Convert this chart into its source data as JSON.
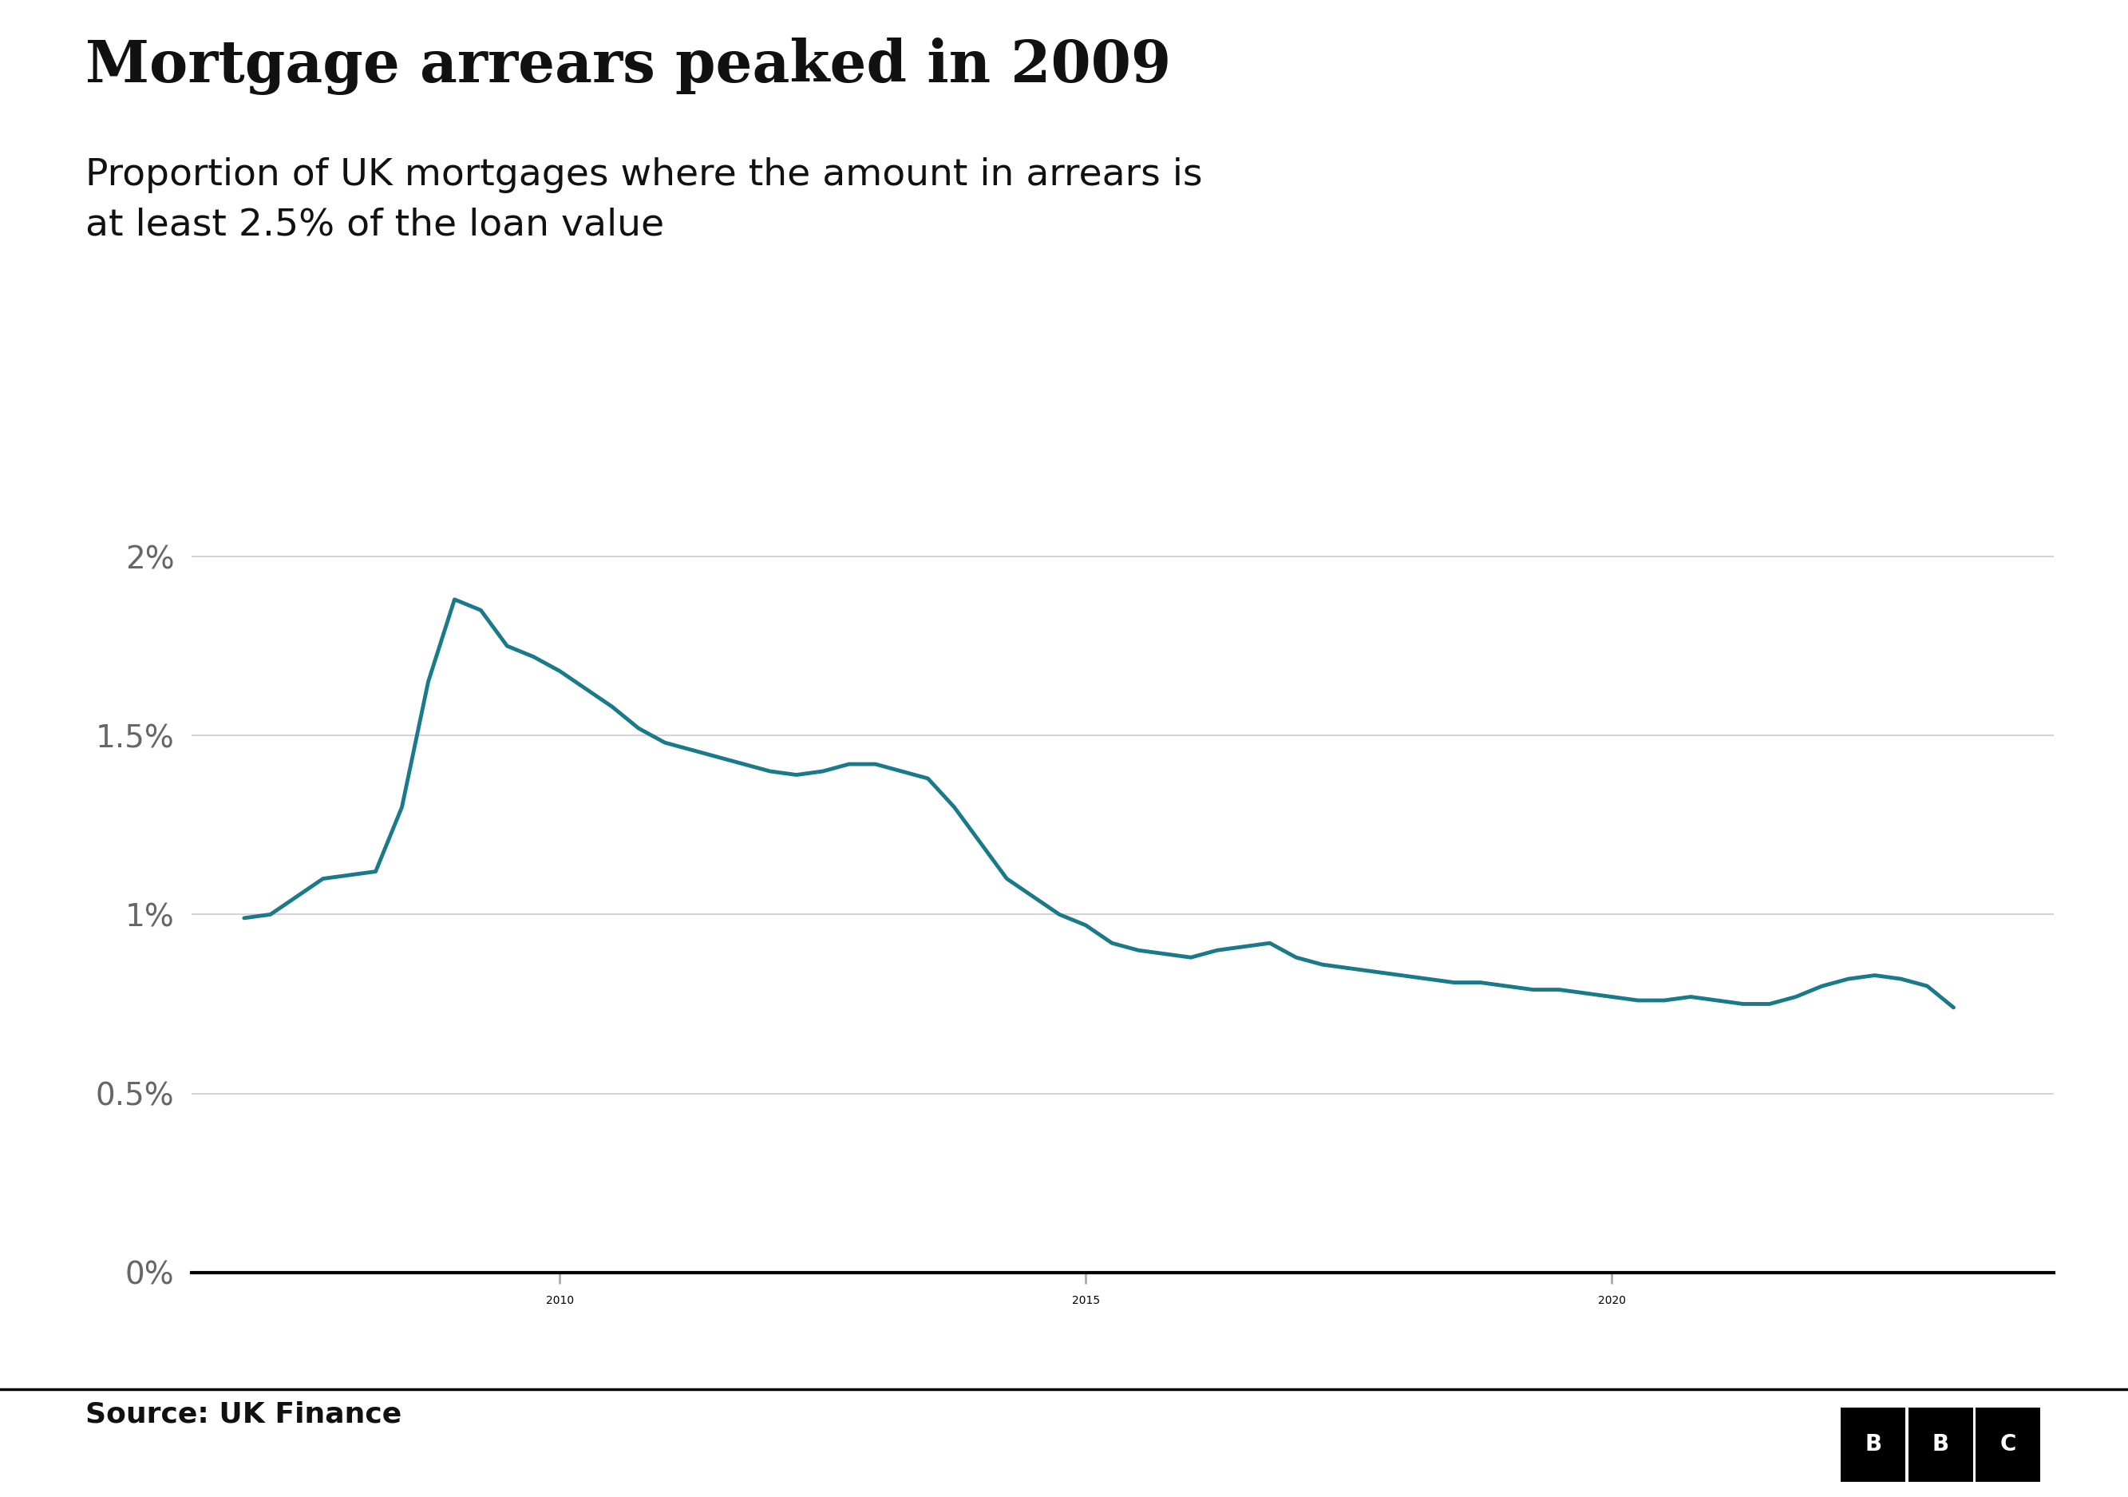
{
  "title": "Mortgage arrears peaked in 2009",
  "subtitle": "Proportion of UK mortgages where the amount in arrears is\nat least 2.5% of the loan value",
  "source": "Source: UK Finance",
  "line_color": "#1a7a8a",
  "background_color": "#ffffff",
  "title_fontsize": 52,
  "subtitle_fontsize": 34,
  "years": [
    2007.0,
    2007.25,
    2007.5,
    2007.75,
    2008.0,
    2008.25,
    2008.5,
    2008.75,
    2009.0,
    2009.25,
    2009.5,
    2009.75,
    2010.0,
    2010.25,
    2010.5,
    2010.75,
    2011.0,
    2011.25,
    2011.5,
    2011.75,
    2012.0,
    2012.25,
    2012.5,
    2012.75,
    2013.0,
    2013.25,
    2013.5,
    2013.75,
    2014.0,
    2014.25,
    2014.5,
    2014.75,
    2015.0,
    2015.25,
    2015.5,
    2015.75,
    2016.0,
    2016.25,
    2016.5,
    2016.75,
    2017.0,
    2017.25,
    2017.5,
    2017.75,
    2018.0,
    2018.25,
    2018.5,
    2018.75,
    2019.0,
    2019.25,
    2019.5,
    2019.75,
    2020.0,
    2020.25,
    2020.5,
    2020.75,
    2021.0,
    2021.25,
    2021.5,
    2021.75,
    2022.0,
    2022.25,
    2022.5,
    2022.75,
    2023.0,
    2023.25
  ],
  "values_pct": [
    0.99,
    1.0,
    1.05,
    1.1,
    1.11,
    1.12,
    1.3,
    1.65,
    1.88,
    1.85,
    1.75,
    1.72,
    1.68,
    1.63,
    1.58,
    1.52,
    1.48,
    1.46,
    1.44,
    1.42,
    1.4,
    1.39,
    1.4,
    1.42,
    1.42,
    1.4,
    1.38,
    1.3,
    1.2,
    1.1,
    1.05,
    1.0,
    0.97,
    0.92,
    0.9,
    0.89,
    0.88,
    0.9,
    0.91,
    0.92,
    0.88,
    0.86,
    0.85,
    0.84,
    0.83,
    0.82,
    0.81,
    0.81,
    0.8,
    0.79,
    0.79,
    0.78,
    0.77,
    0.76,
    0.76,
    0.77,
    0.76,
    0.75,
    0.75,
    0.77,
    0.8,
    0.82,
    0.83,
    0.82,
    0.8,
    0.74
  ],
  "xlim": [
    2006.5,
    2024.2
  ],
  "ylim": [
    0.0,
    2.3
  ],
  "yticks": [
    0.0,
    0.5,
    1.0,
    1.5,
    2.0
  ],
  "ytick_labels": [
    "0%",
    "0.5%",
    "1%",
    "1.5%",
    "2%"
  ],
  "xticks": [
    2010,
    2015,
    2020
  ],
  "grid_color": "#cccccc",
  "line_width": 3.5
}
